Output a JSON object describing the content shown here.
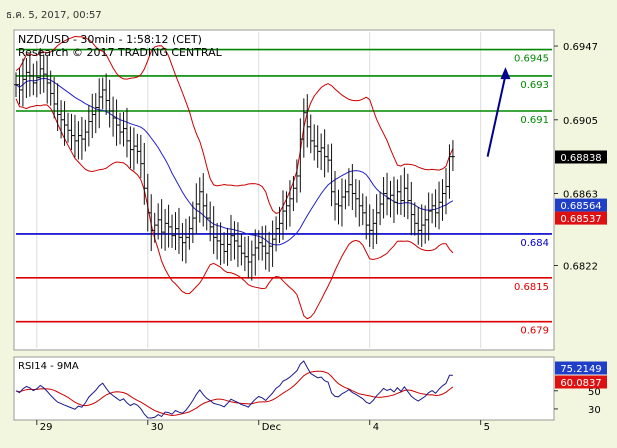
{
  "timestamp": "ธ.ค. 5, 2017, 00:57",
  "chart_data": {
    "type": "candlestick",
    "title": "NZD/USD - 30min - 1:58:12 (CET)",
    "subtitle": "Research © 2017 TRADING CENTRAL",
    "y_axis_ticks": [
      "0.6947",
      "0.6905",
      "0.6863",
      "0.6822"
    ],
    "ylim": [
      0.6775,
      0.6955
    ],
    "x_tick_labels": [
      {
        "label": "29",
        "index": 6
      },
      {
        "label": "30",
        "index": 38
      },
      {
        "label": "Dec",
        "index": 70
      },
      {
        "label": "4",
        "index": 102
      },
      {
        "label": "5",
        "index": 134
      }
    ],
    "bar_count": 140,
    "horizontal_levels": [
      {
        "value": 0.6945,
        "label": "0.6945",
        "color": "#008800"
      },
      {
        "value": 0.693,
        "label": "0.693",
        "color": "#008800"
      },
      {
        "value": 0.691,
        "label": "0.691",
        "color": "#008800"
      },
      {
        "value": 0.684,
        "label": "0.684",
        "color": "#0000cc"
      },
      {
        "value": 0.6815,
        "label": "0.6815",
        "color": "#dd0000"
      },
      {
        "value": 0.679,
        "label": "0.679",
        "color": "#dd0000"
      }
    ],
    "price_tags": [
      {
        "value": 0.68838,
        "label": "0.68838",
        "bg": "#000000",
        "fg": "#ffffff"
      },
      {
        "value": 0.68564,
        "label": "0.68564",
        "bg": "#1f3fc9",
        "fg": "#ffffff"
      },
      {
        "value": 0.68537,
        "label": "0.68537",
        "bg": "#dd1111",
        "fg": "#ffffff"
      }
    ],
    "forecast_arrow": {
      "from_index": 136,
      "from_value": 0.6884,
      "to_index": 140,
      "to_value": 0.6935,
      "color": "#00008b"
    },
    "close_series": [
      0.6925,
      0.6922,
      0.6928,
      0.6932,
      0.693,
      0.6926,
      0.6929,
      0.6934,
      0.6931,
      0.6926,
      0.692,
      0.6914,
      0.6908,
      0.6905,
      0.6902,
      0.6899,
      0.6896,
      0.6893,
      0.6896,
      0.6894,
      0.6898,
      0.6904,
      0.6908,
      0.6912,
      0.6918,
      0.6922,
      0.6916,
      0.691,
      0.6906,
      0.6902,
      0.6898,
      0.69,
      0.6893,
      0.6888,
      0.689,
      0.6887,
      0.688,
      0.6866,
      0.6852,
      0.6842,
      0.6845,
      0.6848,
      0.6841,
      0.6846,
      0.6844,
      0.6839,
      0.6843,
      0.6838,
      0.6835,
      0.6838,
      0.6843,
      0.6849,
      0.6857,
      0.6864,
      0.6856,
      0.6849,
      0.6844,
      0.6838,
      0.6836,
      0.6834,
      0.683,
      0.6834,
      0.6839,
      0.6836,
      0.6833,
      0.6829,
      0.6827,
      0.6824,
      0.6828,
      0.6832,
      0.6835,
      0.6833,
      0.6829,
      0.6833,
      0.6837,
      0.6843,
      0.6846,
      0.6853,
      0.6856,
      0.686,
      0.6866,
      0.6873,
      0.6894,
      0.6909,
      0.6901,
      0.6893,
      0.689,
      0.6887,
      0.6889,
      0.6884,
      0.6882,
      0.6864,
      0.6857,
      0.6856,
      0.6861,
      0.6864,
      0.6868,
      0.6863,
      0.686,
      0.6856,
      0.6852,
      0.6845,
      0.6842,
      0.6846,
      0.6852,
      0.6857,
      0.6863,
      0.686,
      0.6862,
      0.6858,
      0.6864,
      0.6859,
      0.6866,
      0.6859,
      0.6851,
      0.6846,
      0.6842,
      0.6845,
      0.6848,
      0.6853,
      0.6856,
      0.6852,
      0.6858,
      0.6863,
      0.6867,
      0.6884,
      0.6884
    ],
    "rsi_panel": {
      "label": "RSI14 - 9MA",
      "ylim": [
        20,
        85
      ],
      "ticks": [
        "50",
        "30"
      ],
      "rsi_tag": {
        "value": 75.2149,
        "label": "75.2149",
        "bg": "#1f3fc9"
      },
      "ma_tag": {
        "value": 60.0837,
        "label": "60.0837",
        "bg": "#dd1111"
      }
    },
    "colors": {
      "bollinger": "#cc0000",
      "moving_average": "#2222cc",
      "bars": "#111111",
      "rsi": "#1a1a8c",
      "rsi_ma": "#cc0000"
    }
  }
}
